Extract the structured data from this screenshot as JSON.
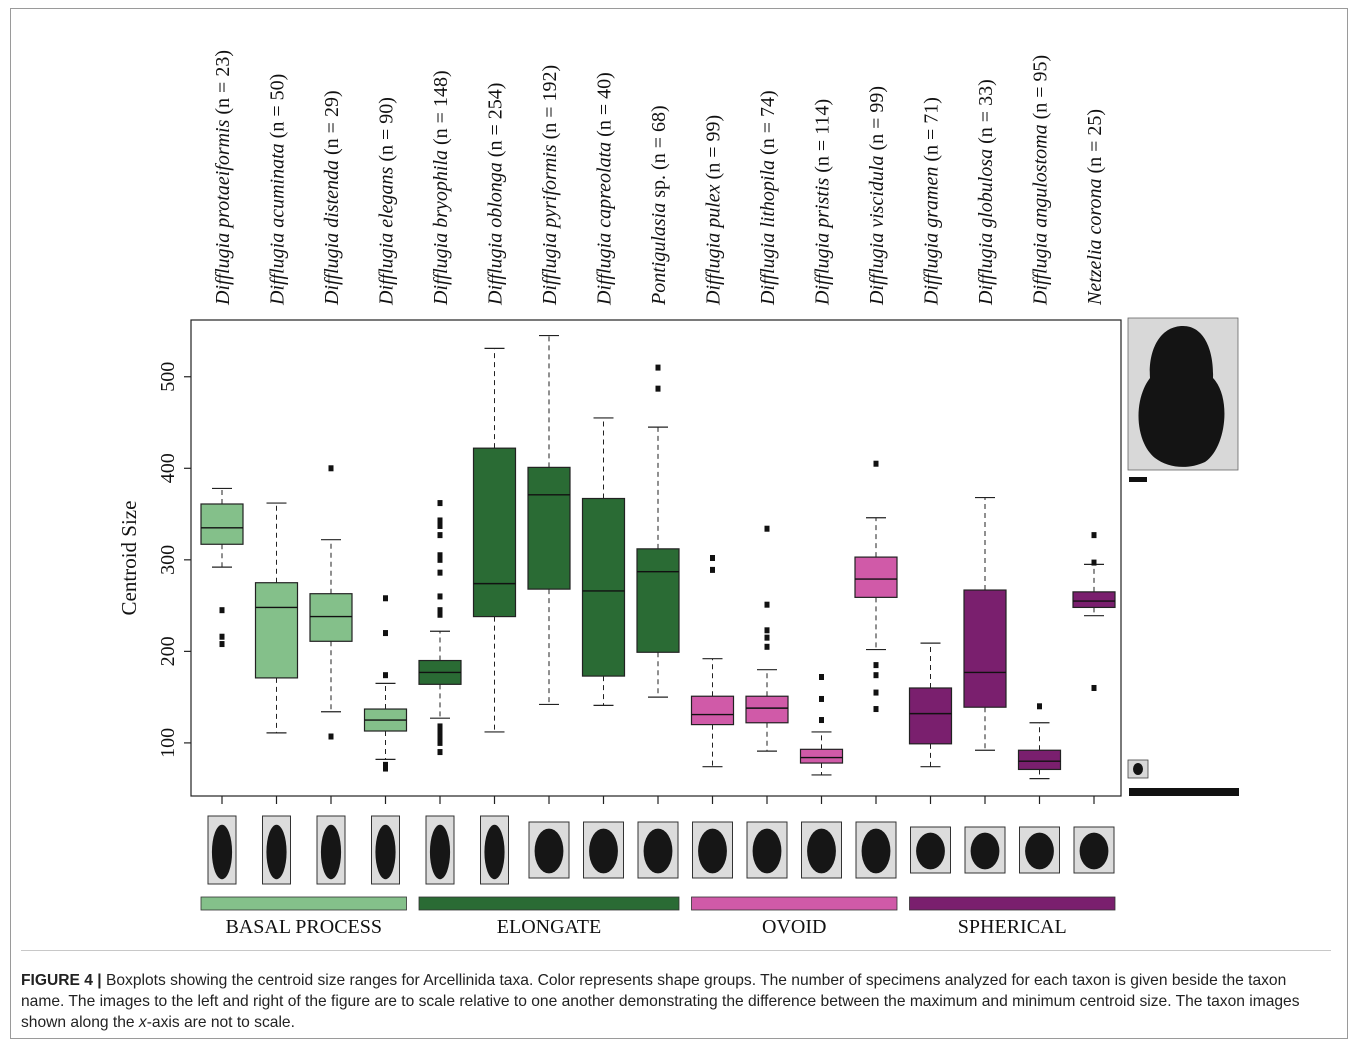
{
  "chart_data": {
    "type": "boxplot",
    "ylabel": "Centroid Size",
    "ylim": [
      42,
      562
    ],
    "yticks": [
      100,
      200,
      300,
      400,
      500
    ],
    "grid": false,
    "taxa": [
      {
        "genus": "Difflugia",
        "epithet": "protaeiformis",
        "n": "(n = 23)",
        "group": "basal",
        "q1": 317,
        "median": 335,
        "q3": 361,
        "wlo": 292,
        "whi": 378,
        "outliers": [
          245,
          216,
          208
        ]
      },
      {
        "genus": "Difflugia",
        "epithet": "acuminata",
        "n": "(n = 50)",
        "group": "basal",
        "q1": 171,
        "median": 248,
        "q3": 275,
        "wlo": 111,
        "whi": 362,
        "outliers": []
      },
      {
        "genus": "Difflugia",
        "epithet": "distenda",
        "n": "(n = 29)",
        "group": "basal",
        "q1": 211,
        "median": 238,
        "q3": 263,
        "wlo": 134,
        "whi": 322,
        "outliers": [
          400,
          107
        ]
      },
      {
        "genus": "Difflugia",
        "epithet": "elegans",
        "n": "(n = 90)",
        "group": "basal",
        "q1": 113,
        "median": 125,
        "q3": 137,
        "wlo": 82,
        "whi": 165,
        "outliers": [
          258,
          220,
          174,
          76,
          72
        ]
      },
      {
        "genus": "Difflugia",
        "epithet": "bryophila",
        "n": "(n = 148)",
        "group": "elongate",
        "q1": 164,
        "median": 177,
        "q3": 190,
        "wlo": 127,
        "whi": 222,
        "outliers": [
          362,
          343,
          337,
          327,
          305,
          300,
          286,
          260,
          245,
          240,
          118,
          112,
          106,
          100,
          90
        ]
      },
      {
        "genus": "Difflugia",
        "epithet": "oblonga",
        "n": "(n = 254)",
        "group": "elongate",
        "q1": 238,
        "median": 274,
        "q3": 422,
        "wlo": 112,
        "whi": 531,
        "outliers": []
      },
      {
        "genus": "Difflugia",
        "epithet": "pyriformis",
        "n": "(n = 192)",
        "group": "elongate",
        "q1": 268,
        "median": 371,
        "q3": 401,
        "wlo": 142,
        "whi": 545,
        "outliers": []
      },
      {
        "genus": "Difflugia",
        "epithet": "capreolata",
        "n": "(n = 40)",
        "group": "elongate",
        "q1": 173,
        "median": 266,
        "q3": 367,
        "wlo": 141,
        "whi": 455,
        "outliers": []
      },
      {
        "genus": "Pontigulasia",
        "epithet": "sp.",
        "n": "(n = 68)",
        "group": "elongate",
        "q1": 199,
        "median": 287,
        "q3": 312,
        "wlo": 150,
        "whi": 445,
        "outliers": [
          510,
          487
        ]
      },
      {
        "genus": "Difflugia",
        "epithet": "pulex",
        "n": "(n =  99)",
        "group": "ovoid",
        "q1": 120,
        "median": 131,
        "q3": 151,
        "wlo": 74,
        "whi": 192,
        "outliers": [
          302,
          289
        ]
      },
      {
        "genus": "Difflugia",
        "epithet": "lithopila",
        "n": "(n = 74)",
        "group": "ovoid",
        "q1": 122,
        "median": 138,
        "q3": 151,
        "wlo": 91,
        "whi": 180,
        "outliers": [
          334,
          251,
          223,
          215,
          205
        ]
      },
      {
        "genus": "Difflugia",
        "epithet": "pristis",
        "n": "(n = 114)",
        "group": "ovoid",
        "q1": 78,
        "median": 84,
        "q3": 93,
        "wlo": 65,
        "whi": 112,
        "outliers": [
          172,
          148,
          125
        ]
      },
      {
        "genus": "Difflugia",
        "epithet": "viscidula",
        "n": "(n = 99)",
        "group": "ovoid",
        "q1": 259,
        "median": 279,
        "q3": 303,
        "wlo": 202,
        "whi": 346,
        "outliers": [
          405,
          185,
          174,
          155,
          137
        ]
      },
      {
        "genus": "Difflugia",
        "epithet": "gramen",
        "n": "(n = 71)",
        "group": "spherical",
        "q1": 99,
        "median": 132,
        "q3": 160,
        "wlo": 74,
        "whi": 209,
        "outliers": []
      },
      {
        "genus": "Difflugia",
        "epithet": "globulosa",
        "n": "(n = 33)",
        "group": "spherical",
        "q1": 139,
        "median": 177,
        "q3": 267,
        "wlo": 92,
        "whi": 368,
        "outliers": []
      },
      {
        "genus": "Difflugia",
        "epithet": "angulostoma",
        "n": "(n = 95)",
        "group": "spherical",
        "q1": 71,
        "median": 80,
        "q3": 92,
        "wlo": 61,
        "whi": 122,
        "outliers": [
          140
        ]
      },
      {
        "genus": "Netzelia",
        "epithet": "corona",
        "n": "(n = 25)",
        "group": "spherical",
        "q1": 248,
        "median": 255,
        "q3": 265,
        "wlo": 239,
        "whi": 295,
        "outliers": [
          327,
          297,
          160
        ]
      }
    ],
    "groups": [
      {
        "key": "basal",
        "label": "BASAL PROCESS",
        "color": "#84c08a"
      },
      {
        "key": "elongate",
        "label": "ELONGATE",
        "color": "#2a6b34"
      },
      {
        "key": "ovoid",
        "label": "OVOID",
        "color": "#d05aa8"
      },
      {
        "key": "spherical",
        "label": "SPHERICAL",
        "color": "#7a1f6e"
      }
    ]
  },
  "caption": {
    "label": "FIGURE 4 |",
    "text_before": " Boxplots showing the centroid size ranges for Arcellinida taxa. Color represents shape groups. The number of specimens analyzed for each taxon is given beside the taxon name. The images to the left and right of the figure are to scale relative to one another demonstrating the difference between the maximum and minimum centroid size. The taxon images shown along the ",
    "axis_word": "x",
    "text_after": "-axis are not to scale."
  }
}
